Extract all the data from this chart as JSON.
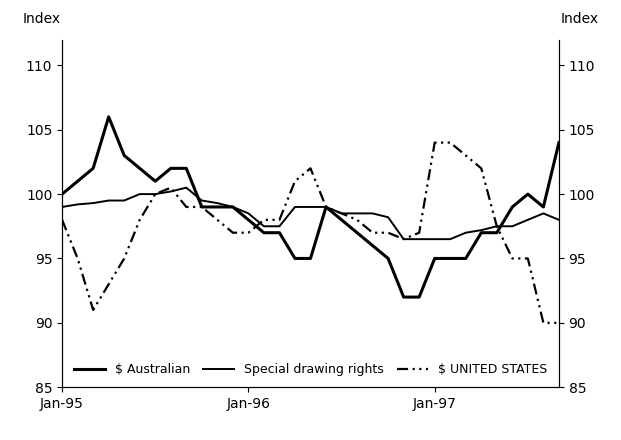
{
  "ylabel_left": "Index",
  "ylabel_right": "Index",
  "ylim": [
    85,
    112
  ],
  "yticks": [
    85,
    90,
    95,
    100,
    105,
    110
  ],
  "x_labels": [
    "Jan-95",
    "Jan-96",
    "Jan-97"
  ],
  "series": {
    "australian": {
      "label": "$ Australian",
      "linewidth": 2.2,
      "color": "#000000",
      "values": [
        100,
        101,
        102,
        106,
        103,
        102,
        101,
        102,
        102,
        99,
        99,
        99,
        98,
        97,
        97,
        95,
        95,
        99,
        98,
        97,
        96,
        95,
        92,
        92,
        95,
        95,
        95,
        97,
        97,
        99,
        100,
        99,
        104
      ]
    },
    "sdr": {
      "label": "Special drawing rights",
      "linewidth": 1.4,
      "color": "#000000",
      "values": [
        99,
        99.2,
        99.3,
        99.5,
        99.5,
        100,
        100,
        100.2,
        100.5,
        99.5,
        99.3,
        99,
        98.5,
        97.5,
        97.5,
        99,
        99,
        99,
        98.5,
        98.5,
        98.5,
        98.2,
        96.5,
        96.5,
        96.5,
        96.5,
        97,
        97.2,
        97.5,
        97.5,
        98,
        98.5,
        98
      ]
    },
    "usd": {
      "label": "$ UNITED STATES",
      "linewidth": 1.6,
      "color": "#000000",
      "values": [
        98,
        95,
        91,
        93,
        95,
        98,
        100,
        100.5,
        99,
        99,
        98,
        97,
        97,
        98,
        98,
        101,
        102,
        99,
        98.5,
        98,
        97,
        97,
        96.5,
        97,
        104,
        104,
        103,
        102,
        97.5,
        95,
        95,
        90,
        90
      ]
    }
  },
  "background_color": "#ffffff",
  "fontsize": 10,
  "x_tick_positions": [
    0,
    12,
    24
  ],
  "legend_fontsize": 9
}
